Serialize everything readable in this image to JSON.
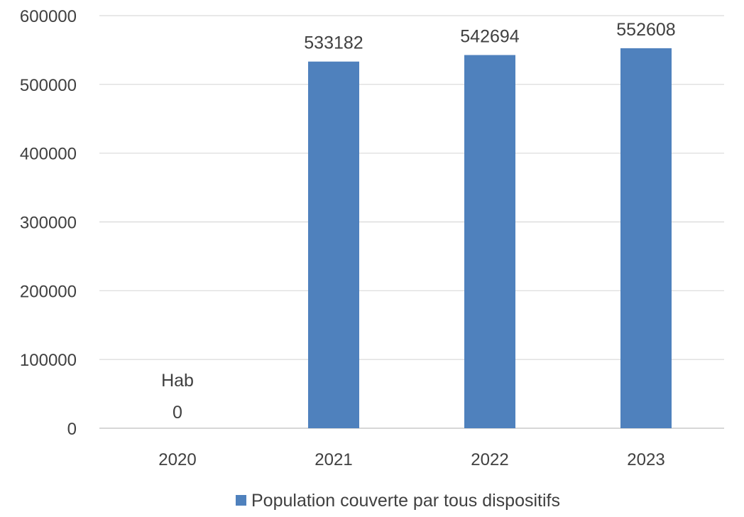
{
  "chart_data": {
    "type": "bar",
    "categories": [
      "2020",
      "2021",
      "2022",
      "2023"
    ],
    "series": [
      {
        "name": "Population couverte par tous dispositifs",
        "values": [
          0,
          533182,
          542694,
          552608
        ],
        "color": "#4f81bd"
      }
    ],
    "data_labels": [
      "0",
      "533182",
      "542694",
      "552608"
    ],
    "annotation": "Hab",
    "yticks": [
      "0",
      "100000",
      "200000",
      "300000",
      "400000",
      "500000",
      "600000"
    ],
    "ylim": [
      0,
      600000
    ],
    "grid": true,
    "legend_position": "bottom",
    "title": "",
    "xlabel": "",
    "ylabel": ""
  }
}
